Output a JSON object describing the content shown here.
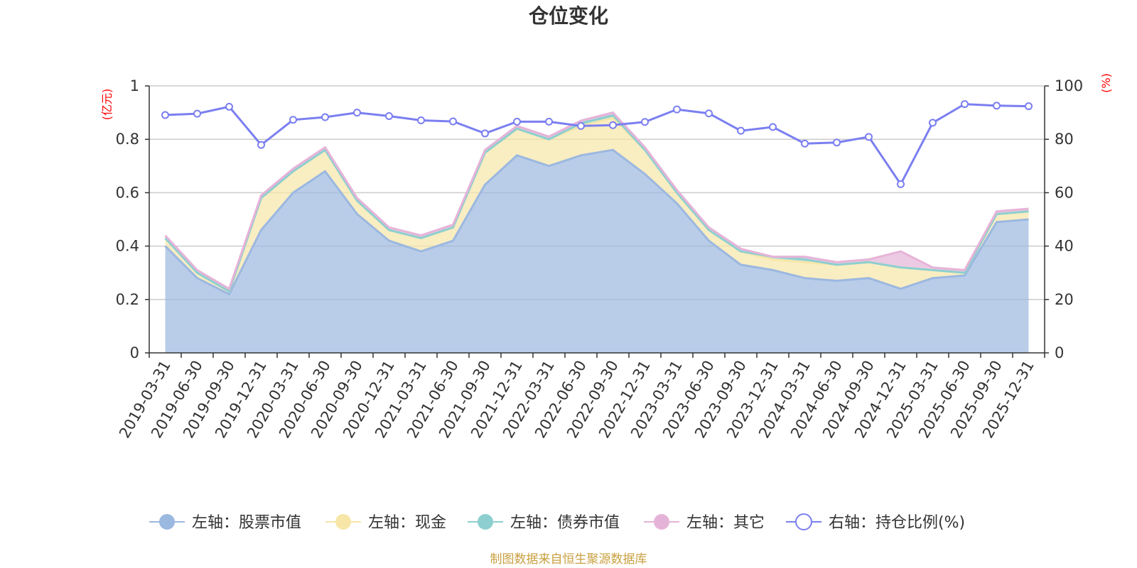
{
  "chart_data": {
    "type": "area+line",
    "title": "仓位变化",
    "left_axis_unit": "(亿元)",
    "right_axis_unit": "(%)",
    "left_ylim": [
      0,
      1
    ],
    "left_ticks": [
      "0",
      "0.2",
      "0.4",
      "0.6",
      "0.8",
      "1"
    ],
    "right_ylim": [
      0,
      100
    ],
    "right_ticks": [
      "0",
      "20",
      "40",
      "60",
      "80",
      "100"
    ],
    "categories": [
      "2019-03-31",
      "2019-06-30",
      "2019-09-30",
      "2019-12-31",
      "2020-03-31",
      "2020-06-30",
      "2020-09-30",
      "2020-12-31",
      "2021-03-31",
      "2021-06-30",
      "2021-09-30",
      "2021-12-31",
      "2022-03-31",
      "2022-06-30",
      "2022-09-30",
      "2022-12-31",
      "2023-03-31",
      "2023-06-30",
      "2023-09-30",
      "2023-12-31",
      "2024-03-31",
      "2024-06-30",
      "2024-09-30",
      "2024-12-31",
      "2025-03-31",
      "2025-06-30",
      "2025-09-30",
      "2025-12-31"
    ],
    "series": [
      {
        "name": "左轴：股票市值",
        "axis": "left",
        "type": "stacked-area",
        "color": "#9bb8e0",
        "values": [
          0.4,
          0.28,
          0.22,
          0.46,
          0.6,
          0.68,
          0.52,
          0.42,
          0.38,
          0.42,
          0.63,
          0.74,
          0.7,
          0.74,
          0.76,
          0.67,
          0.56,
          0.42,
          0.33,
          0.31,
          0.28,
          0.27,
          0.28,
          0.24,
          0.28,
          0.29,
          0.49,
          0.5
        ]
      },
      {
        "name": "左轴：现金",
        "axis": "left",
        "type": "stacked-area",
        "color": "#f7e6a8",
        "values": [
          0.03,
          0.02,
          0.01,
          0.12,
          0.08,
          0.08,
          0.05,
          0.04,
          0.05,
          0.05,
          0.12,
          0.1,
          0.1,
          0.11,
          0.12,
          0.09,
          0.04,
          0.04,
          0.05,
          0.04,
          0.06,
          0.06,
          0.06,
          0.08,
          0.03,
          0.01,
          0.03,
          0.03
        ]
      },
      {
        "name": "左轴：债券市值",
        "axis": "left",
        "type": "stacked-area",
        "color": "#8dcfd0",
        "values": [
          0,
          0,
          0,
          0,
          0,
          0,
          0,
          0,
          0,
          0,
          0,
          0,
          0,
          0.01,
          0.01,
          0,
          0,
          0,
          0,
          0.01,
          0.01,
          0,
          0,
          0,
          0,
          0,
          0,
          0
        ]
      },
      {
        "name": "左轴：其它",
        "axis": "left",
        "type": "stacked-area",
        "color": "#e6b3d8",
        "values": [
          0.01,
          0.01,
          0.01,
          0.01,
          0.01,
          0.01,
          0.01,
          0.01,
          0.01,
          0.01,
          0.01,
          0.01,
          0.01,
          0.01,
          0.01,
          0.01,
          0.01,
          0.01,
          0.01,
          0.0,
          0.01,
          0.01,
          0.01,
          0.06,
          0.01,
          0.01,
          0.01,
          0.01
        ]
      },
      {
        "name": "右轴：持仓比例(%)",
        "axis": "right",
        "type": "line",
        "color": "#7b7ff0",
        "values": [
          89.1,
          89.6,
          92.2,
          77.9,
          87.3,
          88.3,
          90.0,
          88.7,
          87.1,
          86.7,
          82.2,
          86.6,
          86.6,
          85.0,
          85.3,
          86.5,
          91.2,
          89.7,
          83.2,
          84.6,
          78.4,
          78.8,
          80.9,
          63.2,
          86.2,
          93.2,
          92.6,
          92.4
        ]
      }
    ],
    "source": "制图数据来自恒生聚源数据库"
  }
}
